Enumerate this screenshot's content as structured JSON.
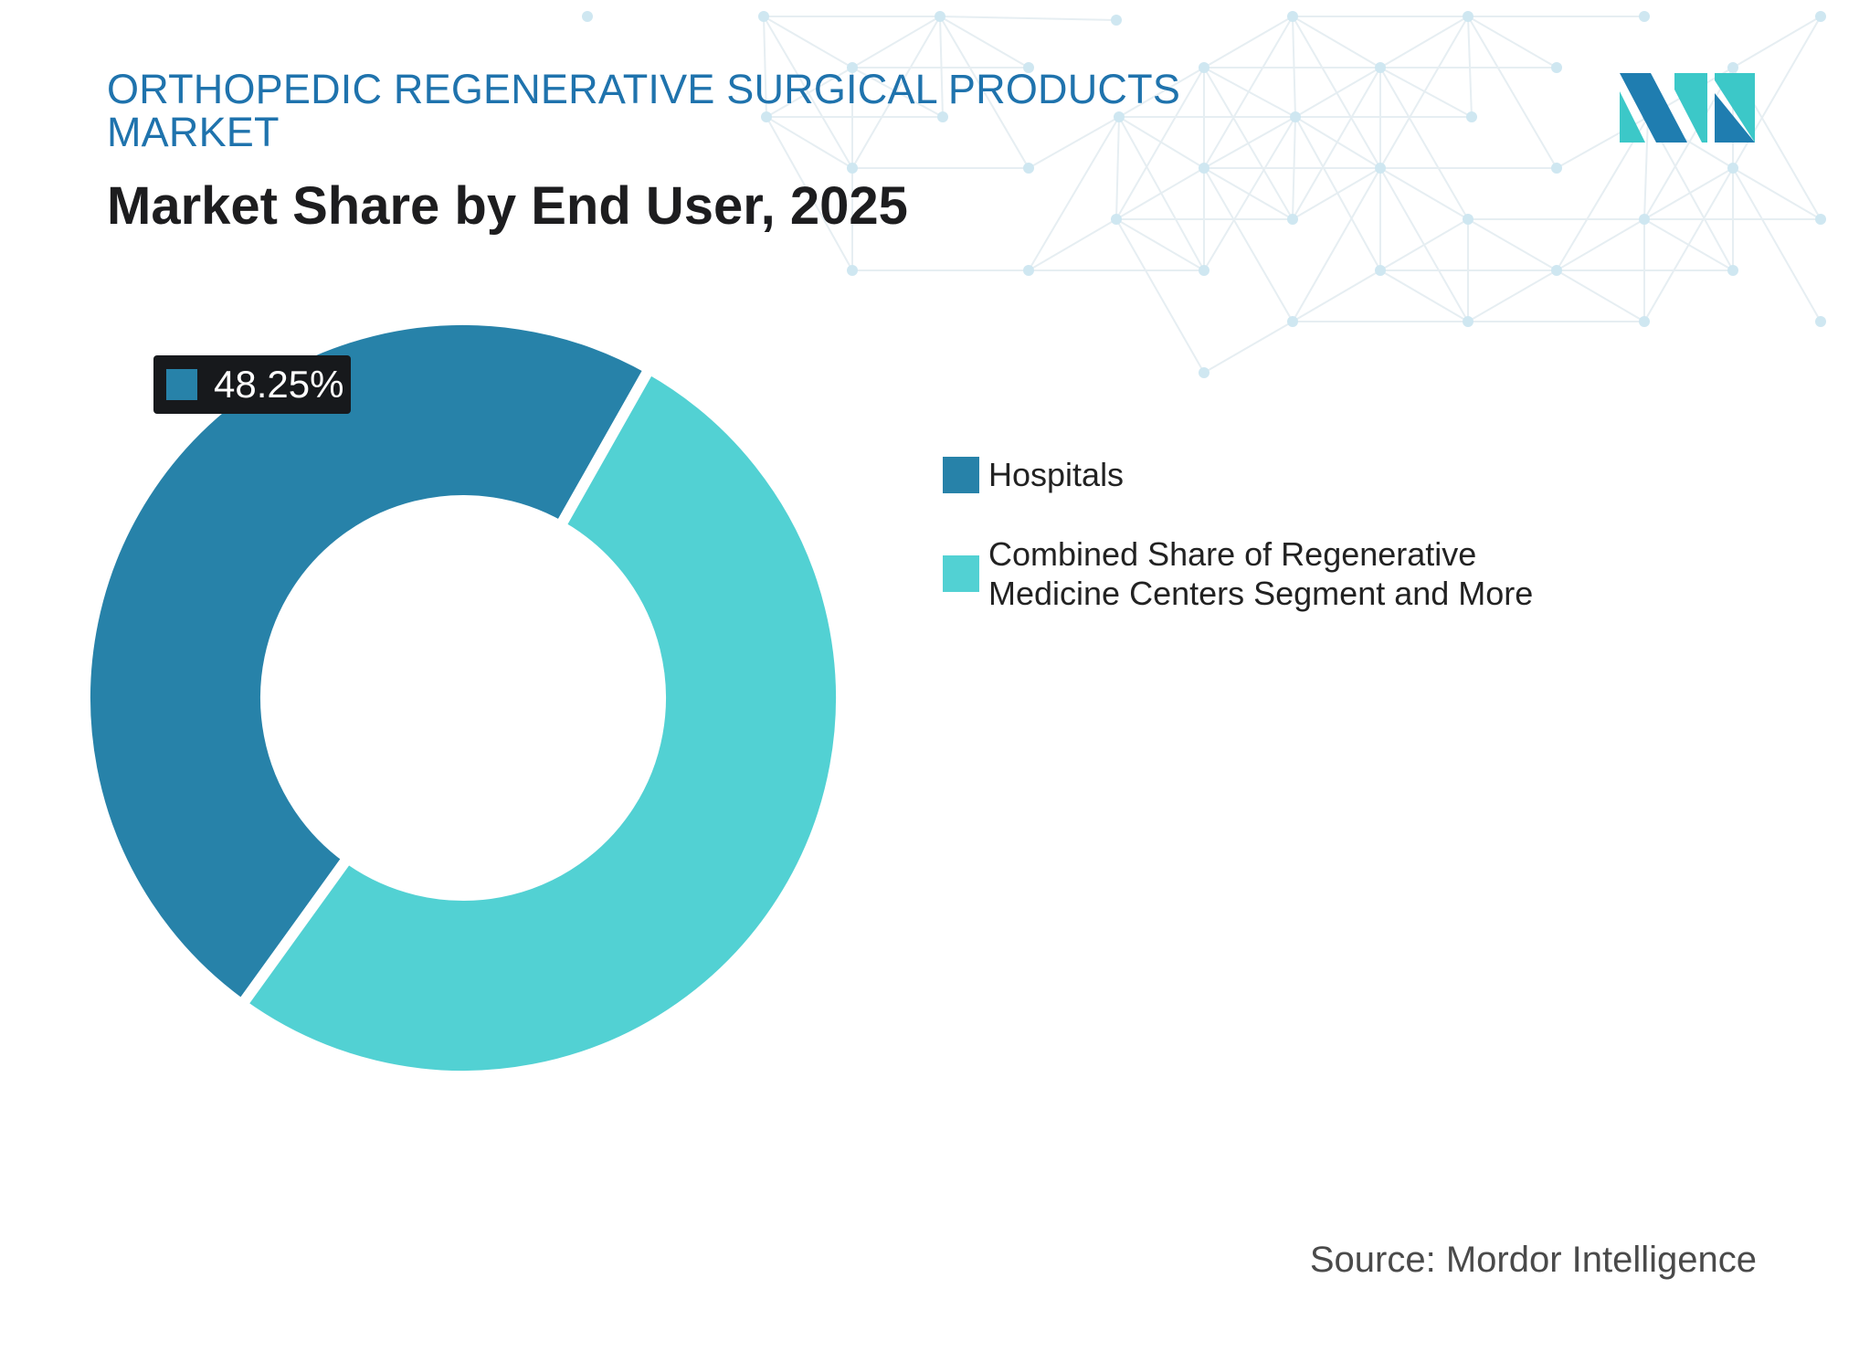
{
  "header": {
    "kicker": "ORTHOPEDIC REGENERATIVE SURGICAL PRODUCTS MARKET",
    "title": "Market Share by End User, 2025"
  },
  "colors": {
    "hospitals": "#2782a9",
    "combined": "#52d1d3",
    "callout_bg": "#17191c",
    "logo_dark": "#1f7db0",
    "logo_light": "#3cc8c8",
    "pattern": "#cfe7f1"
  },
  "chart_data": {
    "type": "pie",
    "variant": "donut",
    "title": "Market Share by End User, 2025",
    "categories": [
      "Hospitals",
      "Combined Share of Regenerative Medicine Centers Segment and More"
    ],
    "values": [
      48.25,
      51.75
    ],
    "unit": "%",
    "data_labels": [
      "48.25%"
    ],
    "legend_position": "right"
  },
  "legend": {
    "items": [
      {
        "label": "Hospitals"
      },
      {
        "label": "Combined Share of Regenerative Medicine Centers Segment and More"
      }
    ]
  },
  "callout": {
    "label": "48.25%"
  },
  "footer": {
    "source": "Source: Mordor Intelligence"
  },
  "logo": {
    "icon": "mordor-logo-icon"
  }
}
